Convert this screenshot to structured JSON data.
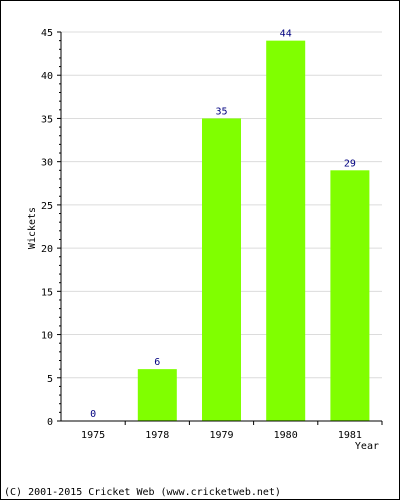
{
  "chart_data": {
    "type": "bar",
    "categories": [
      "1975",
      "1978",
      "1979",
      "1980",
      "1981"
    ],
    "values": [
      0,
      6,
      35,
      44,
      29
    ],
    "xlabel": "Year",
    "ylabel": "Wickets",
    "ylim": [
      0,
      45
    ],
    "yticks": [
      "0",
      "5",
      "10",
      "15",
      "20",
      "25",
      "30",
      "35",
      "40",
      "45"
    ],
    "grid": true,
    "bar_color": "#80ff00",
    "label_color": "#000080"
  },
  "footer": "(C) 2001-2015 Cricket Web (www.cricketweb.net)"
}
